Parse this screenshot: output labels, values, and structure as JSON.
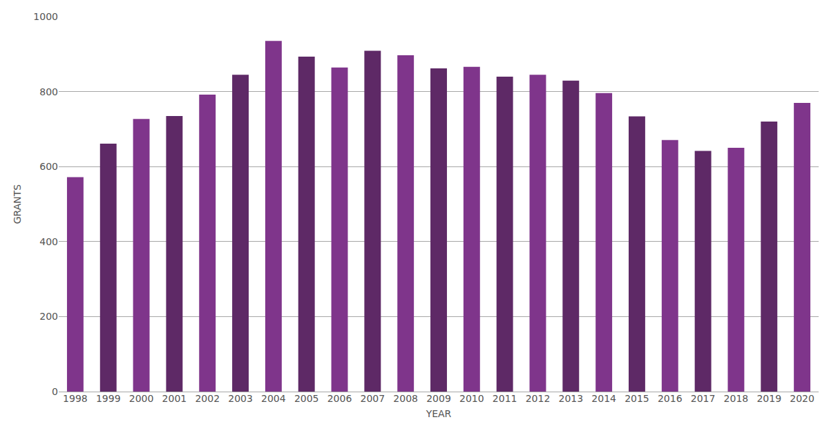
{
  "chart_data": {
    "type": "bar",
    "x_label": "YEAR",
    "y_label": "GRANTS",
    "categories": [
      "1998",
      "1999",
      "2000",
      "2001",
      "2002",
      "2003",
      "2004",
      "2005",
      "2006",
      "2007",
      "2008",
      "2009",
      "2010",
      "2011",
      "2012",
      "2013",
      "2014",
      "2015",
      "2016",
      "2017",
      "2018",
      "2019",
      "2020"
    ],
    "values": [
      572,
      661,
      727,
      735,
      792,
      845,
      935,
      893,
      864,
      909,
      897,
      862,
      866,
      840,
      845,
      829,
      796,
      734,
      671,
      642,
      650,
      720,
      770
    ],
    "colors": [
      "#7f358b",
      "#5e2966",
      "#7f358b",
      "#5e2966",
      "#7f358b",
      "#5e2966",
      "#7f358b",
      "#5e2966",
      "#7f358b",
      "#5e2966",
      "#7f358b",
      "#5e2966",
      "#7f358b",
      "#5e2966",
      "#7f358b",
      "#5e2966",
      "#7f358b",
      "#5e2966",
      "#7f358b",
      "#5e2966",
      "#7f358b",
      "#5e2966",
      "#7f358b"
    ],
    "ylim": [
      0,
      1000
    ],
    "yticks": [
      0,
      200,
      400,
      600,
      800,
      1000
    ],
    "grid": true
  }
}
